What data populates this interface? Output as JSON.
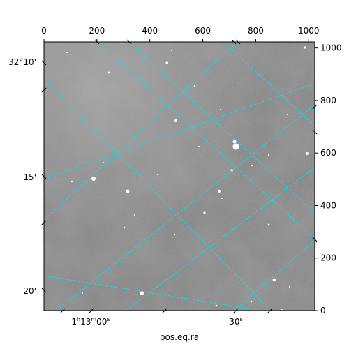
{
  "image": {
    "kind": "astronomical-field-grayscale",
    "colormap": "gray",
    "overlay_grid_color": "#00e5e5"
  },
  "pixel_axes": {
    "x_ticks": [
      "0",
      "200",
      "400",
      "600",
      "800",
      "1000"
    ],
    "x_tick_values": [
      0,
      200,
      400,
      600,
      800,
      1000
    ],
    "x_range": [
      0,
      1023
    ],
    "y_ticks": [
      "0",
      "200",
      "400",
      "600",
      "800",
      "1000"
    ],
    "y_tick_values": [
      0,
      200,
      400,
      600,
      800,
      1000
    ],
    "y_range": [
      0,
      1023
    ]
  },
  "world_axes": {
    "dec_labels": [
      "32°10'",
      "15'",
      "20'"
    ],
    "ra_labels": [
      "1h13m00s",
      "30s"
    ],
    "ra_label_parts": [
      {
        "a": "1",
        "b": "h",
        "c": "13",
        "d": "m",
        "e": "00",
        "f": "s"
      },
      {
        "a": "30",
        "f": "s"
      }
    ],
    "xlabel": "pos.eq.ra"
  }
}
